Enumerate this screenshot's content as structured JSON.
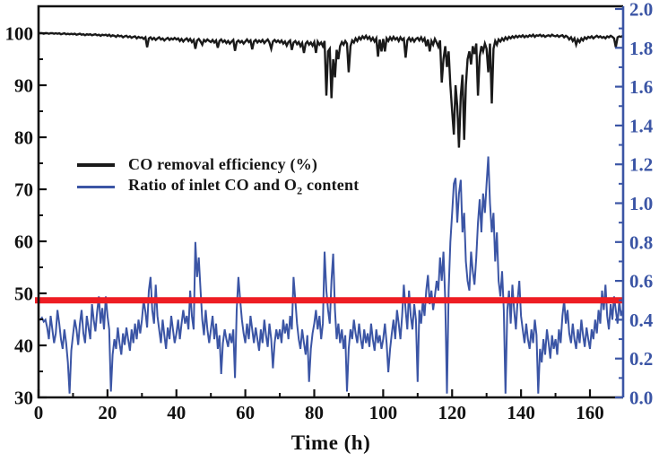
{
  "chart_data": {
    "type": "line",
    "title": "",
    "xlabel": "Time (h)",
    "grid": false,
    "x_axis": {
      "min": 0,
      "max": 169.6,
      "major_tick_labels": [
        "0",
        "20",
        "40",
        "60",
        "80",
        "100",
        "120",
        "140",
        "160"
      ],
      "minor_ticks": [
        10,
        30,
        50,
        70,
        90,
        110,
        130,
        150
      ]
    },
    "left_axis": {
      "min": 30,
      "max": 100,
      "color": "#111111",
      "major_tick_labels": [
        "30",
        "40",
        "50",
        "60",
        "70",
        "80",
        "90",
        "100"
      ],
      "minor_ticks": [
        35,
        45,
        55,
        65,
        75,
        85,
        95
      ]
    },
    "right_axis": {
      "min": 0.0,
      "max": 2.0,
      "color": "#3b55a5",
      "major_tick_labels": [
        "0.0",
        "0.2",
        "0.4",
        "0.6",
        "0.8",
        "1.0",
        "1.2",
        "1.4",
        "1.6",
        "1.8",
        "2.0"
      ],
      "minor_ticks": [
        0.1,
        0.3,
        0.5,
        0.7,
        0.9,
        1.1,
        1.3,
        1.5,
        1.7,
        1.9
      ]
    },
    "reference_line": {
      "axis": "right",
      "value": 0.5,
      "color": "#ee1d23"
    },
    "legend": {
      "ratio_prefix": "Ratio of inlet CO and O",
      "ratio_sub": "2",
      "ratio_suffix": " content"
    },
    "series": [
      {
        "name": "CO removal efficiency (%)",
        "axis": "left",
        "color": "#1a1a1a",
        "x_start": 0,
        "x_step": 0.5,
        "values": [
          100,
          100,
          100,
          99.9,
          100,
          100,
          99.9,
          100,
          100,
          99.9,
          100,
          99.9,
          100,
          99.8,
          99.9,
          100,
          99.8,
          99.9,
          99.8,
          99.9,
          99.8,
          99.9,
          99.7,
          99.8,
          99.9,
          99.7,
          99.8,
          99.6,
          99.8,
          99.7,
          99.8,
          99.6,
          99.7,
          99.8,
          99.6,
          99.7,
          99.5,
          99.7,
          99.6,
          99.7,
          99.5,
          99.7,
          99.4,
          99.6,
          99.5,
          99.3,
          99.6,
          99.4,
          99.5,
          99.2,
          99.4,
          99.5,
          99.2,
          99.4,
          99.1,
          99.3,
          99.4,
          99.0,
          99.3,
          99.1,
          99.2,
          98.9,
          99.2,
          97.3,
          99.0,
          99.2,
          98.8,
          99.1,
          98.7,
          99.0,
          99.2,
          98.8,
          99.0,
          98.6,
          98.9,
          99.1,
          98.7,
          99.0,
          98.8,
          99.1,
          98.8,
          99.0,
          98.5,
          98.9,
          98.4,
          98.8,
          99.0,
          98.5,
          98.9,
          98.3,
          98.7,
          97.0,
          98.6,
          98.9,
          98.4,
          97.8,
          98.7,
          98.4,
          98.8,
          98.5,
          98.3,
          98.7,
          98.2,
          98.6,
          97.2,
          98.5,
          98.8,
          98.3,
          98.6,
          98.1,
          98.5,
          98.0,
          98.4,
          98.7,
          96.6,
          98.3,
          98.6,
          98.2,
          98.5,
          98.0,
          98.4,
          98.8,
          98.3,
          98.6,
          96.9,
          98.4,
          98.7,
          98.2,
          98.6,
          98.3,
          98.7,
          98.1,
          98.5,
          98.8,
          98.2,
          97.0,
          98.4,
          98.7,
          98.3,
          98.6,
          98.2,
          98.6,
          98.0,
          98.4,
          97.6,
          98.3,
          98.6,
          96.8,
          98.2,
          98.5,
          97.9,
          98.3,
          97.5,
          98.1,
          96.2,
          98.0,
          98.4,
          97.8,
          98.2,
          97.6,
          98.3,
          96.2,
          98.4,
          97.8,
          98.2,
          97.5,
          98.5,
          88.0,
          96.5,
          97.0,
          87.5,
          95.0,
          91.5,
          96.8,
          95.0,
          97.5,
          98.3,
          97.8,
          98.5,
          98.0,
          92.5,
          97.5,
          98.6,
          98.2,
          99.0,
          98.5,
          99.2,
          98.8,
          99.4,
          99.0,
          99.5,
          98.9,
          99.3,
          98.6,
          99.1,
          98.4,
          99.0,
          95.5,
          98.8,
          96.5,
          98.9,
          96.5,
          99.0,
          98.5,
          99.2,
          98.7,
          99.3,
          98.8,
          99.1,
          98.5,
          99.2,
          98.7,
          99.0,
          95.3,
          98.6,
          99.1,
          98.5,
          99.0,
          98.4,
          98.9,
          99.1,
          98.6,
          99.2,
          98.5,
          99.0,
          97.5,
          98.8,
          96.5,
          98.5,
          97.8,
          98.9,
          98.2,
          97.4,
          98.6,
          90.5,
          95.0,
          97.5,
          93.5,
          96.5,
          90.0,
          85.0,
          80.5,
          90.0,
          86.0,
          78.0,
          88.0,
          92.0,
          79.5,
          90.0,
          95.0,
          96.5,
          94.0,
          97.5,
          96.0,
          98.0,
          88.0,
          95.5,
          97.5,
          96.5,
          98.0,
          97.0,
          92.5,
          98.0,
          86.5,
          97.0,
          98.5,
          97.8,
          98.8,
          98.4,
          99.0,
          98.6,
          99.2,
          98.8,
          99.3,
          99.0,
          99.4,
          99.1,
          99.5,
          99.2,
          99.5,
          99.3,
          99.6,
          99.2,
          99.5,
          99.3,
          99.6,
          99.4,
          99.7,
          99.3,
          99.6,
          99.5,
          99.7,
          99.4,
          99.6,
          99.3,
          99.5,
          99.6,
          99.4,
          99.7,
          99.5,
          99.4,
          99.6,
          99.3,
          99.5,
          99.6,
          99.2,
          99.5,
          99.3,
          98.8,
          99.2,
          98.5,
          99.0,
          97.8,
          98.8,
          98.3,
          99.0,
          98.6,
          99.2,
          98.9,
          99.3,
          99.1,
          99.4,
          99.0,
          99.3,
          99.5,
          99.2,
          99.4,
          99.1,
          99.3,
          99.0,
          99.4,
          99.2,
          99.5,
          99.3,
          99.0,
          97.3,
          99.2,
          99.4,
          99.3,
          99.5
        ]
      },
      {
        "name": "Ratio of inlet CO and O2 content",
        "axis": "right",
        "color": "#3b55a5",
        "x_start": 0,
        "x_step": 0.5,
        "values": [
          0.4,
          0.4,
          0.41,
          0.39,
          0.4,
          0.36,
          0.3,
          0.42,
          0.35,
          0.28,
          0.33,
          0.45,
          0.38,
          0.3,
          0.25,
          0.35,
          0.28,
          0.18,
          0.02,
          0.24,
          0.32,
          0.4,
          0.35,
          0.27,
          0.38,
          0.45,
          0.33,
          0.28,
          0.42,
          0.36,
          0.3,
          0.48,
          0.4,
          0.34,
          0.44,
          0.52,
          0.38,
          0.46,
          0.35,
          0.52,
          0.42,
          0.35,
          0.03,
          0.22,
          0.3,
          0.25,
          0.36,
          0.28,
          0.22,
          0.33,
          0.27,
          0.36,
          0.3,
          0.24,
          0.35,
          0.28,
          0.38,
          0.3,
          0.4,
          0.33,
          0.4,
          0.5,
          0.44,
          0.36,
          0.55,
          0.62,
          0.45,
          0.38,
          0.58,
          0.42,
          0.35,
          0.28,
          0.4,
          0.32,
          0.25,
          0.36,
          0.3,
          0.42,
          0.35,
          0.28,
          0.33,
          0.4,
          0.3,
          0.38,
          0.45,
          0.38,
          0.42,
          0.35,
          0.55,
          0.42,
          0.35,
          0.8,
          0.62,
          0.72,
          0.55,
          0.4,
          0.32,
          0.45,
          0.35,
          0.28,
          0.35,
          0.42,
          0.3,
          0.38,
          0.25,
          0.32,
          0.12,
          0.28,
          0.35,
          0.3,
          0.26,
          0.33,
          0.28,
          0.35,
          0.1,
          0.45,
          0.62,
          0.5,
          0.4,
          0.33,
          0.28,
          0.38,
          0.3,
          0.42,
          0.35,
          0.28,
          0.36,
          0.3,
          0.24,
          0.35,
          0.28,
          0.4,
          0.32,
          0.26,
          0.38,
          0.3,
          0.15,
          0.28,
          0.35,
          0.3,
          0.35,
          0.28,
          0.4,
          0.33,
          0.38,
          0.3,
          0.42,
          0.35,
          0.62,
          0.5,
          0.38,
          0.3,
          0.25,
          0.35,
          0.28,
          0.22,
          0.32,
          0.08,
          0.25,
          0.33,
          0.38,
          0.45,
          0.35,
          0.42,
          0.3,
          0.38,
          0.75,
          0.55,
          0.45,
          0.38,
          0.6,
          0.74,
          0.45,
          0.3,
          0.38,
          0.28,
          0.35,
          0.25,
          0.32,
          0.03,
          0.25,
          0.35,
          0.3,
          0.4,
          0.33,
          0.28,
          0.38,
          0.3,
          0.25,
          0.35,
          0.28,
          0.33,
          0.26,
          0.38,
          0.3,
          0.24,
          0.35,
          0.28,
          0.32,
          0.25,
          0.3,
          0.38,
          0.28,
          0.13,
          0.25,
          0.33,
          0.4,
          0.3,
          0.45,
          0.38,
          0.3,
          0.42,
          0.58,
          0.45,
          0.35,
          0.55,
          0.42,
          0.35,
          0.48,
          0.4,
          0.08,
          0.45,
          0.38,
          0.5,
          0.42,
          0.55,
          0.63,
          0.48,
          0.55,
          0.45,
          0.52,
          0.6,
          0.55,
          0.72,
          0.6,
          0.75,
          0.5,
          0.02,
          0.55,
          0.8,
          0.95,
          1.1,
          1.13,
          0.9,
          1.05,
          1.12,
          0.85,
          0.95,
          0.7,
          0.6,
          0.55,
          0.75,
          0.65,
          0.58,
          0.72,
          0.9,
          1.02,
          0.85,
          1.05,
          0.95,
          1.1,
          1.24,
          1.0,
          0.85,
          0.95,
          0.7,
          0.85,
          0.6,
          0.52,
          0.65,
          0.45,
          0.02,
          0.45,
          0.55,
          0.38,
          0.58,
          0.45,
          0.35,
          0.5,
          0.6,
          0.42,
          0.35,
          0.28,
          0.38,
          0.3,
          0.25,
          0.35,
          0.28,
          0.4,
          0.32,
          0.02,
          0.25,
          0.18,
          0.3,
          0.22,
          0.35,
          0.28,
          0.2,
          0.32,
          0.25,
          0.3,
          0.22,
          0.35,
          0.28,
          0.42,
          0.5,
          0.38,
          0.45,
          0.33,
          0.28,
          0.38,
          0.3,
          0.25,
          0.35,
          0.28,
          0.4,
          0.32,
          0.26,
          0.36,
          0.3,
          0.25,
          0.35,
          0.3,
          0.4,
          0.33,
          0.45,
          0.38,
          0.55,
          0.45,
          0.58,
          0.42,
          0.35,
          0.48,
          0.4,
          0.52,
          0.45,
          0.38,
          0.5,
          0.42,
          0.45
        ]
      }
    ]
  }
}
